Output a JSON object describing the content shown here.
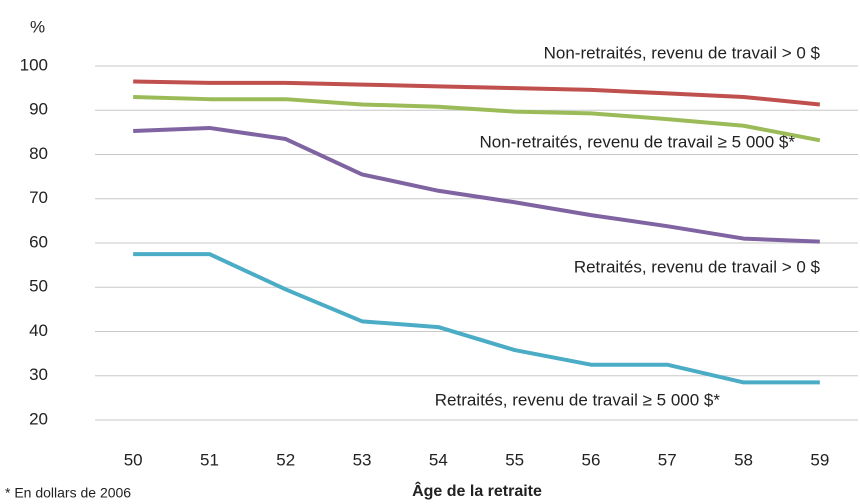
{
  "chart_data": {
    "type": "line",
    "ylabel": "%",
    "xlabel": "Âge de la retraite",
    "footnote": "* En dollars de 2006",
    "categories": [
      "50",
      "51",
      "52",
      "53",
      "54",
      "55",
      "56",
      "57",
      "58",
      "59"
    ],
    "ylim": [
      20,
      100
    ],
    "yticks": [
      20,
      30,
      40,
      50,
      60,
      70,
      80,
      90,
      100
    ],
    "grid": true,
    "series": [
      {
        "name": "Non-retraités, revenu de travail > 0 $",
        "color": "#c0504d",
        "values": [
          96.5,
          96.2,
          96.2,
          95.8,
          95.4,
          95.0,
          94.6,
          93.8,
          93.0,
          91.3
        ]
      },
      {
        "name": "Non-retraités, revenu de travail ≥ 5 000 $*",
        "color": "#9bbb59",
        "values": [
          93.0,
          92.5,
          92.5,
          91.3,
          90.8,
          89.7,
          89.3,
          88.0,
          86.5,
          83.2
        ]
      },
      {
        "name": "Retraités, revenu de travail > 0 $",
        "color": "#8064a2",
        "values": [
          85.3,
          86.0,
          83.5,
          75.5,
          71.8,
          69.2,
          66.3,
          63.8,
          61.0,
          60.3
        ]
      },
      {
        "name": "Retraités, revenu de travail ≥ 5 000 $*",
        "color": "#4bacc6",
        "values": [
          57.5,
          57.5,
          49.5,
          42.3,
          41.0,
          35.8,
          32.5,
          32.5,
          28.5,
          28.5
        ]
      }
    ]
  }
}
